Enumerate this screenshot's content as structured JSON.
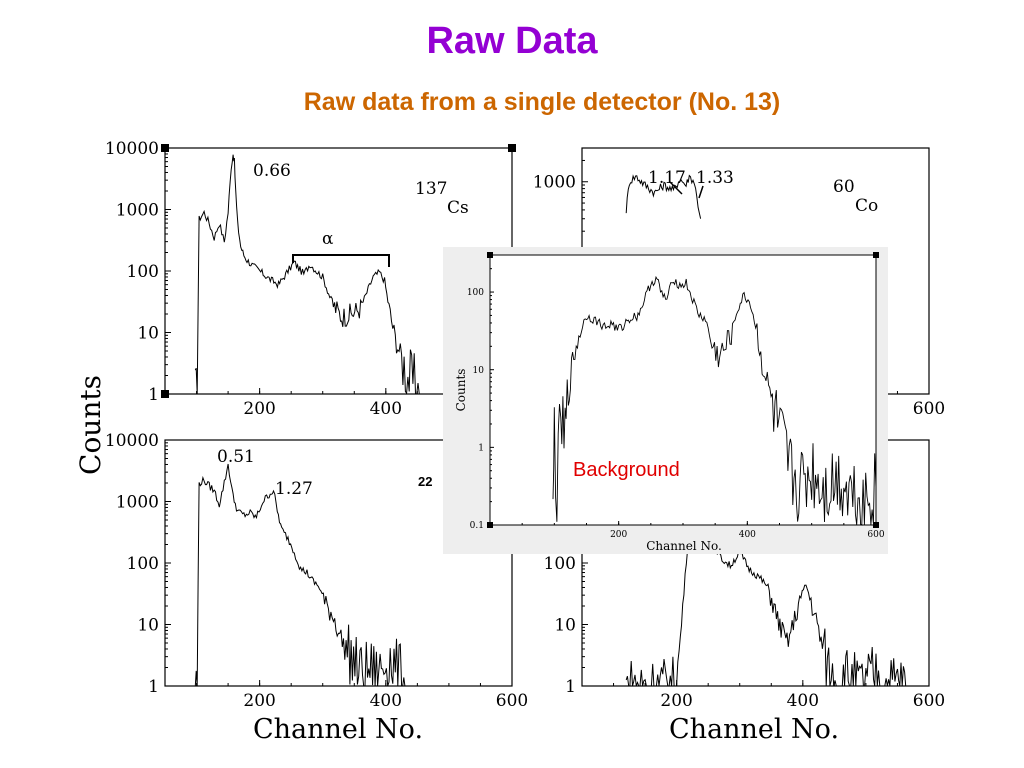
{
  "slide": {
    "title": "Raw Data",
    "subtitle": "Raw data from a single detector (No. 13)",
    "colors": {
      "title": "#9400d3",
      "subtitle": "#cc6600",
      "background_label": "#e00000",
      "inset_bg": "#eeeeee"
    }
  },
  "chart_data": [
    {
      "id": "cs137",
      "type": "line",
      "isotope_mass": "137",
      "isotope_symbol": "Cs",
      "ylabel": "Counts",
      "xlabel": "",
      "yscale": "log",
      "xlim": [
        50,
        600
      ],
      "ylim": [
        1,
        10000
      ],
      "x_ticks": [
        "200",
        "400"
      ],
      "y_ticks": [
        "1",
        "10",
        "100",
        "1000",
        "10000"
      ],
      "annotations": [
        {
          "text": "0.66",
          "x": 190,
          "y": 6000
        },
        {
          "text": "α",
          "x": 300,
          "y": 450
        }
      ],
      "bracket": [
        255,
        405
      ],
      "x": [
        98,
        101,
        104,
        112,
        120,
        128,
        136,
        144,
        150,
        155,
        158,
        160,
        162,
        165,
        170,
        175,
        180,
        190,
        200,
        215,
        230,
        245,
        255,
        262,
        270,
        280,
        290,
        300,
        315,
        330,
        345,
        360,
        370,
        380,
        390,
        398,
        405,
        415,
        425,
        435,
        445,
        455
      ],
      "values": [
        1,
        1,
        700,
        900,
        600,
        350,
        600,
        300,
        900,
        5000,
        8000,
        6000,
        2000,
        600,
        250,
        180,
        150,
        120,
        100,
        75,
        60,
        100,
        140,
        110,
        90,
        130,
        100,
        80,
        30,
        18,
        20,
        25,
        45,
        80,
        95,
        70,
        25,
        8,
        4,
        2,
        1.5,
        1
      ]
    },
    {
      "id": "co60",
      "type": "line",
      "isotope_mass": "60",
      "isotope_symbol": "Co",
      "yscale": "log",
      "xlim": [
        50,
        600
      ],
      "ylim": [
        1,
        3000
      ],
      "x_ticks": [
        "200",
        "400",
        "600"
      ],
      "y_ticks": [
        "1000"
      ],
      "annotations": [
        {
          "text": "1.17",
          "x": 175,
          "y": 2000
        },
        {
          "text": "1.33",
          "x": 235,
          "y": 2000
        }
      ],
      "x": [
        120,
        125,
        135,
        150,
        165,
        180,
        195,
        205,
        215,
        220,
        228,
        232,
        238
      ],
      "values": [
        400,
        1000,
        1200,
        900,
        700,
        900,
        750,
        1100,
        900,
        1200,
        1000,
        600,
        300
      ]
    },
    {
      "id": "na22",
      "type": "line",
      "isotope_mass": "22",
      "isotope_symbol": "",
      "ylabel": "",
      "xlabel": "Channel No.",
      "yscale": "log",
      "xlim": [
        50,
        600
      ],
      "ylim": [
        1,
        10000
      ],
      "x_ticks": [
        "200",
        "400",
        "600"
      ],
      "y_ticks": [
        "1",
        "10",
        "100",
        "1000",
        "10000"
      ],
      "annotations": [
        {
          "text": "0.51",
          "x": 135,
          "y": 9000
        },
        {
          "text": "1.27",
          "x": 235,
          "y": 3500
        }
      ],
      "x": [
        98,
        101,
        104,
        112,
        120,
        128,
        136,
        144,
        150,
        158,
        165,
        175,
        185,
        195,
        205,
        215,
        222,
        228,
        235,
        245,
        255,
        265,
        275,
        285,
        295,
        305,
        315,
        325,
        335,
        345,
        355,
        365,
        375,
        385,
        395,
        405,
        415,
        425,
        432
      ],
      "values": [
        1,
        1,
        2000,
        2200,
        1800,
        1500,
        900,
        2000,
        4000,
        1200,
        700,
        600,
        650,
        550,
        1000,
        1300,
        1500,
        700,
        350,
        250,
        150,
        80,
        70,
        50,
        40,
        20,
        15,
        8,
        4,
        3,
        2,
        1.5,
        2,
        1.5,
        2,
        3,
        2,
        1.5,
        1
      ]
    },
    {
      "id": "bottom-right",
      "type": "line",
      "xlabel": "Channel No.",
      "yscale": "log",
      "xlim": [
        50,
        600
      ],
      "ylim": [
        1,
        10000
      ],
      "x_ticks": [
        "200",
        "400",
        "600"
      ],
      "y_ticks": [
        "1",
        "10",
        "100"
      ],
      "x": [
        120,
        180,
        200,
        225,
        240,
        255,
        270,
        285,
        300,
        315,
        330,
        345,
        360,
        375,
        385,
        395,
        405,
        415,
        425,
        435,
        445,
        455,
        470,
        490,
        510,
        530,
        550,
        565
      ],
      "values": [
        1,
        1,
        1,
        2000,
        800,
        250,
        120,
        90,
        150,
        80,
        60,
        40,
        12,
        5,
        10,
        25,
        45,
        20,
        8,
        3,
        1.5,
        1,
        1.5,
        1,
        1.5,
        1,
        1.2,
        1
      ]
    },
    {
      "id": "background",
      "type": "line",
      "series_label": "Background",
      "ylabel": "Counts",
      "xlabel": "Channel No.",
      "yscale": "log",
      "xlim": [
        0,
        600
      ],
      "ylim": [
        0.1,
        300
      ],
      "x_ticks": [
        "200",
        "400",
        "600"
      ],
      "y_ticks": [
        "0.1",
        "1",
        "10",
        "100"
      ],
      "x": [
        98,
        100,
        104,
        110,
        115,
        120,
        125,
        130,
        140,
        150,
        160,
        170,
        180,
        190,
        200,
        215,
        230,
        240,
        250,
        260,
        265,
        275,
        285,
        295,
        305,
        315,
        325,
        335,
        345,
        355,
        365,
        375,
        385,
        395,
        405,
        415,
        425,
        435,
        445,
        455,
        465,
        480,
        500,
        520,
        540,
        560,
        580,
        600
      ],
      "values": [
        0.1,
        2,
        0.2,
        3,
        1,
        3,
        8,
        15,
        30,
        50,
        45,
        40,
        35,
        40,
        30,
        45,
        50,
        80,
        130,
        150,
        100,
        80,
        150,
        120,
        130,
        80,
        50,
        45,
        20,
        15,
        18,
        30,
        60,
        90,
        70,
        30,
        10,
        5,
        2,
        1,
        0.5,
        0.3,
        0.5,
        0.3,
        0.4,
        0.3,
        0.2,
        0.3
      ]
    }
  ]
}
